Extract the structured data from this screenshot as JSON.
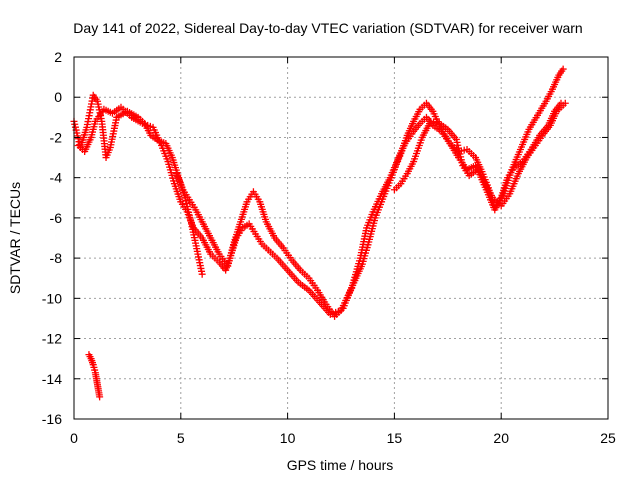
{
  "chart_data": {
    "type": "scatter",
    "title": "Day 141 of 2022, Sidereal Day-to-day VTEC variation (SDTVAR) for receiver warn",
    "xlabel": "GPS time / hours",
    "ylabel": "SDTVAR / TECUs",
    "xlim": [
      0,
      25
    ],
    "ylim": [
      -16,
      2
    ],
    "xticks": [
      0,
      5,
      10,
      15,
      20,
      25
    ],
    "yticks": [
      -16,
      -14,
      -12,
      -10,
      -8,
      -6,
      -4,
      -2,
      0,
      2
    ],
    "grid": true,
    "marker": "+",
    "color": "#ff0000",
    "series": [
      {
        "name": "trace-a",
        "points": [
          [
            0.0,
            -1.2
          ],
          [
            0.3,
            -2.5
          ],
          [
            0.6,
            -1.5
          ],
          [
            0.9,
            0.1
          ],
          [
            1.1,
            -0.2
          ],
          [
            1.3,
            -1.2
          ],
          [
            1.5,
            -3.0
          ],
          [
            1.7,
            -2.5
          ],
          [
            2.0,
            -1.0
          ],
          [
            2.5,
            -0.7
          ],
          [
            3.0,
            -1.0
          ],
          [
            3.3,
            -1.3
          ],
          [
            3.6,
            -1.9
          ],
          [
            4.0,
            -2.2
          ],
          [
            4.3,
            -2.3
          ],
          [
            4.6,
            -3.0
          ],
          [
            4.9,
            -4.0
          ],
          [
            5.2,
            -5.0
          ],
          [
            5.5,
            -6.3
          ],
          [
            5.8,
            -7.8
          ],
          [
            6.0,
            -8.8
          ]
        ]
      },
      {
        "name": "trace-b",
        "points": [
          [
            0.2,
            -2.4
          ],
          [
            0.5,
            -2.7
          ],
          [
            0.8,
            -2.0
          ],
          [
            1.0,
            -1.2
          ],
          [
            1.4,
            -0.6
          ],
          [
            1.8,
            -0.8
          ],
          [
            2.2,
            -0.5
          ],
          [
            2.7,
            -1.0
          ],
          [
            3.2,
            -1.3
          ],
          [
            3.7,
            -1.5
          ],
          [
            4.1,
            -2.4
          ],
          [
            4.4,
            -3.2
          ],
          [
            4.7,
            -4.3
          ],
          [
            5.0,
            -5.2
          ],
          [
            5.3,
            -5.7
          ],
          [
            5.6,
            -6.5
          ],
          [
            6.0,
            -7.0
          ],
          [
            6.4,
            -7.8
          ],
          [
            6.8,
            -8.2
          ],
          [
            7.1,
            -8.6
          ],
          [
            7.3,
            -8.0
          ],
          [
            7.6,
            -7.0
          ],
          [
            7.9,
            -6.5
          ],
          [
            8.2,
            -6.3
          ],
          [
            8.5,
            -6.8
          ],
          [
            8.8,
            -7.3
          ],
          [
            9.1,
            -7.6
          ],
          [
            9.5,
            -8.0
          ],
          [
            10.0,
            -8.6
          ],
          [
            10.5,
            -9.2
          ],
          [
            11.0,
            -9.6
          ],
          [
            11.5,
            -10.2
          ],
          [
            12.0,
            -10.8
          ],
          [
            12.5,
            -10.6
          ],
          [
            13.0,
            -9.5
          ],
          [
            13.4,
            -8.0
          ],
          [
            13.7,
            -6.5
          ],
          [
            14.0,
            -5.7
          ],
          [
            14.4,
            -4.8
          ],
          [
            14.8,
            -4.0
          ],
          [
            15.2,
            -3.0
          ],
          [
            15.5,
            -2.3
          ],
          [
            15.9,
            -1.7
          ],
          [
            16.2,
            -1.3
          ],
          [
            16.5,
            -1.0
          ],
          [
            16.8,
            -1.4
          ],
          [
            17.2,
            -1.7
          ],
          [
            17.6,
            -2.3
          ],
          [
            18.0,
            -2.7
          ],
          [
            18.4,
            -2.6
          ],
          [
            18.8,
            -3.0
          ],
          [
            19.1,
            -3.7
          ],
          [
            19.4,
            -4.5
          ],
          [
            19.7,
            -5.5
          ],
          [
            20.0,
            -5.0
          ],
          [
            20.3,
            -4.0
          ],
          [
            20.6,
            -3.5
          ],
          [
            21.0,
            -3.2
          ],
          [
            21.4,
            -2.6
          ],
          [
            21.8,
            -1.9
          ],
          [
            22.2,
            -1.4
          ],
          [
            22.5,
            -0.7
          ],
          [
            22.8,
            -0.3
          ]
        ]
      },
      {
        "name": "trace-c",
        "points": [
          [
            4.8,
            -3.8
          ],
          [
            5.1,
            -4.6
          ],
          [
            5.4,
            -5.1
          ],
          [
            5.7,
            -5.6
          ],
          [
            6.0,
            -6.2
          ],
          [
            6.4,
            -7.0
          ],
          [
            6.8,
            -7.8
          ],
          [
            7.2,
            -8.4
          ],
          [
            7.5,
            -7.2
          ],
          [
            7.8,
            -6.2
          ],
          [
            8.1,
            -5.2
          ],
          [
            8.4,
            -4.7
          ],
          [
            8.7,
            -5.2
          ],
          [
            9.0,
            -6.2
          ],
          [
            9.4,
            -7.0
          ],
          [
            9.8,
            -7.5
          ],
          [
            10.2,
            -8.1
          ],
          [
            10.6,
            -8.6
          ],
          [
            11.0,
            -9.0
          ],
          [
            11.4,
            -9.6
          ],
          [
            11.8,
            -10.3
          ],
          [
            12.2,
            -10.9
          ],
          [
            12.6,
            -10.5
          ],
          [
            12.9,
            -9.7
          ],
          [
            13.2,
            -9.0
          ],
          [
            13.5,
            -8.3
          ],
          [
            13.8,
            -7.2
          ],
          [
            14.1,
            -6.0
          ],
          [
            14.4,
            -5.2
          ],
          [
            14.7,
            -4.4
          ],
          [
            15.0,
            -3.6
          ],
          [
            15.3,
            -2.8
          ],
          [
            15.6,
            -1.9
          ],
          [
            15.9,
            -1.2
          ],
          [
            16.2,
            -0.6
          ],
          [
            16.5,
            -0.3
          ],
          [
            16.8,
            -0.7
          ],
          [
            17.2,
            -1.6
          ],
          [
            17.6,
            -2.3
          ],
          [
            18.0,
            -3.0
          ],
          [
            18.4,
            -3.6
          ],
          [
            18.8,
            -3.4
          ],
          [
            19.2,
            -4.2
          ],
          [
            19.6,
            -5.0
          ],
          [
            20.0,
            -5.4
          ],
          [
            20.4,
            -4.8
          ],
          [
            20.8,
            -3.8
          ],
          [
            21.2,
            -3.0
          ],
          [
            21.6,
            -2.4
          ],
          [
            22.0,
            -1.8
          ],
          [
            22.3,
            -1.4
          ],
          [
            22.6,
            -0.7
          ],
          [
            23.0,
            -0.3
          ]
        ]
      },
      {
        "name": "trace-d",
        "points": [
          [
            15.0,
            -4.6
          ],
          [
            15.3,
            -4.3
          ],
          [
            15.6,
            -3.8
          ],
          [
            15.9,
            -3.2
          ],
          [
            16.3,
            -2.0
          ],
          [
            16.7,
            -1.2
          ],
          [
            17.1,
            -1.3
          ],
          [
            17.5,
            -1.6
          ],
          [
            17.9,
            -2.1
          ],
          [
            18.2,
            -3.4
          ],
          [
            18.5,
            -3.9
          ],
          [
            18.9,
            -3.6
          ],
          [
            19.3,
            -4.6
          ],
          [
            19.7,
            -5.6
          ],
          [
            20.1,
            -4.8
          ],
          [
            20.5,
            -3.6
          ],
          [
            20.9,
            -2.6
          ],
          [
            21.3,
            -1.6
          ],
          [
            21.7,
            -0.9
          ],
          [
            22.1,
            -0.2
          ],
          [
            22.4,
            0.4
          ],
          [
            22.7,
            1.1
          ],
          [
            22.9,
            1.4
          ]
        ]
      },
      {
        "name": "trace-e",
        "points": [
          [
            0.7,
            -12.8
          ],
          [
            0.8,
            -13.0
          ],
          [
            0.9,
            -13.3
          ],
          [
            1.0,
            -13.7
          ],
          [
            1.05,
            -14.0
          ],
          [
            1.1,
            -14.3
          ],
          [
            1.15,
            -14.6
          ],
          [
            1.2,
            -14.9
          ]
        ]
      }
    ]
  }
}
